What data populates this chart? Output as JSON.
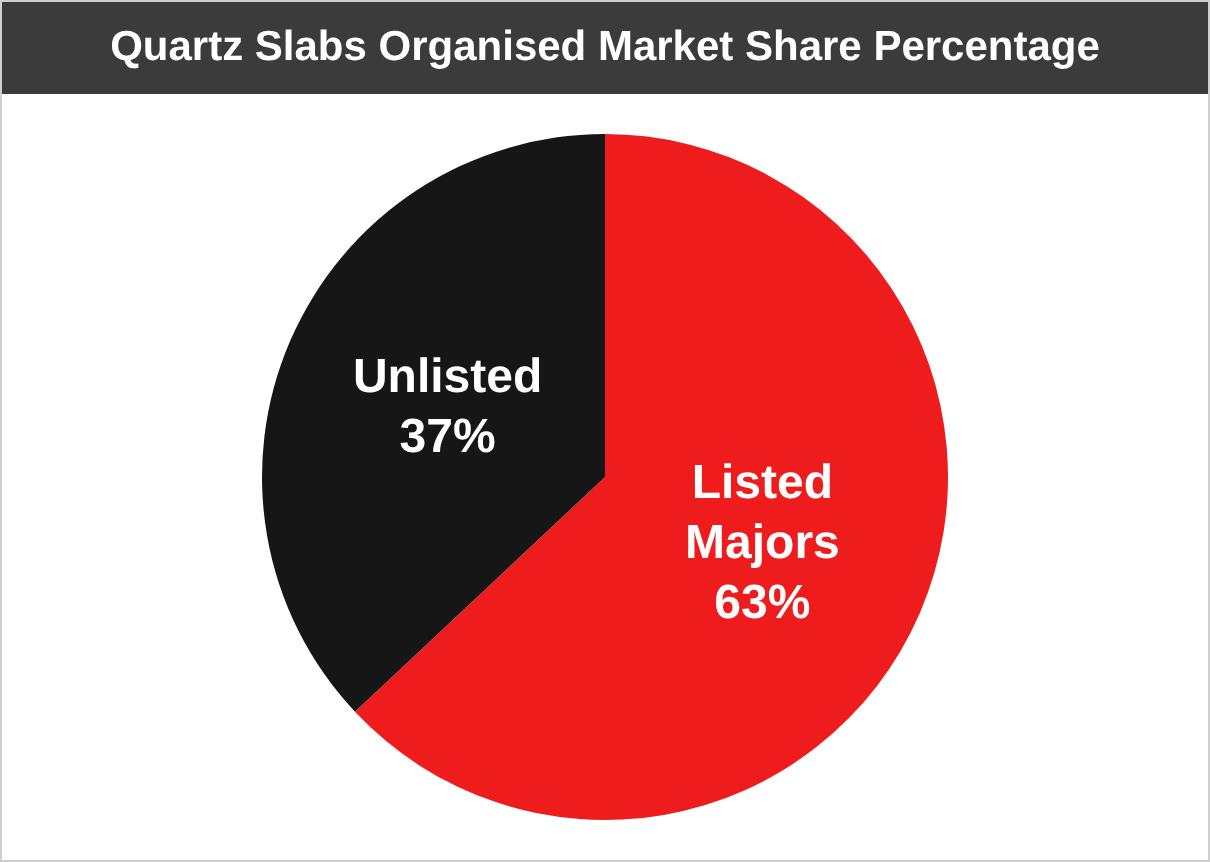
{
  "chart_data": {
    "type": "pie",
    "title": "Quartz Slabs Organised Market Share Percentage",
    "categories": [
      "Listed Majors",
      "Unlisted"
    ],
    "values": [
      63,
      37
    ],
    "value_labels": [
      "63%",
      "37%"
    ],
    "colors": [
      "#ee1c1c",
      "#161616"
    ],
    "legend": false
  }
}
